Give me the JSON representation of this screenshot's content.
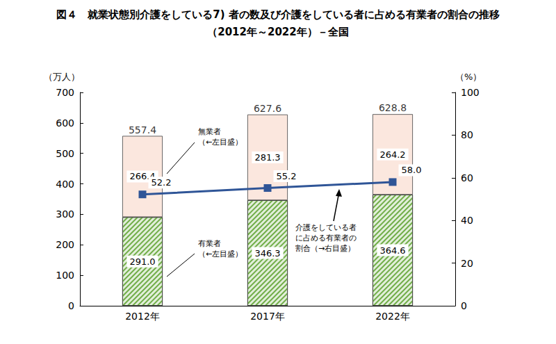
{
  "chart_data": {
    "type": "bar",
    "title": "図４　就業状態別介護をしている7) 者の数及び介護をしている者に占める有業者の割合の推移",
    "subtitle": "（2012年～2022年）－全国",
    "categories": [
      "2012年",
      "2017年",
      "2022年"
    ],
    "stacked": true,
    "data_labels": true,
    "grid": false,
    "ylabel": "（万人）",
    "y2label": "（%）",
    "ylim": [
      0,
      700
    ],
    "yticks": [
      0,
      100,
      200,
      300,
      400,
      500,
      600,
      700
    ],
    "y2lim": [
      0,
      100
    ],
    "y2ticks": [
      0,
      20,
      40,
      60,
      80,
      100
    ],
    "series": [
      {
        "name": "有業者",
        "type": "bar",
        "color": "#70ad47",
        "values": [
          291.0,
          346.3,
          364.6
        ],
        "value_labels": [
          "291.0",
          "346.3",
          "364.6"
        ]
      },
      {
        "name": "無業者",
        "type": "bar",
        "color": "#fbe7de",
        "values": [
          266.4,
          281.3,
          264.2
        ],
        "value_labels": [
          "266.4",
          "281.3",
          "264.2"
        ]
      },
      {
        "name": "介護をしている者に占める有業者の割合",
        "type": "line",
        "axis": "y2",
        "color": "#2f5597",
        "marker": "rect",
        "line_style": "solid",
        "values": [
          52.2,
          55.2,
          58.0
        ],
        "value_labels": [
          "52.2",
          "55.2",
          "58.0"
        ]
      }
    ],
    "totals": {
      "values": [
        557.4,
        627.6,
        628.8
      ],
      "value_labels": [
        "557.4",
        "627.6",
        "628.8"
      ]
    },
    "annotations": [
      "無業者\n（←左目盛）",
      "有業者\n（←左目盛）",
      "介護をしている者\nに占める有業者の\n割合（→右目盛）"
    ]
  }
}
